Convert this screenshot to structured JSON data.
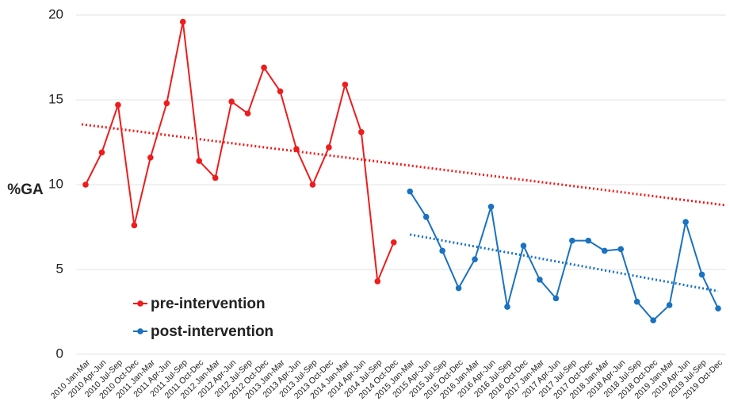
{
  "chart_data": {
    "type": "line",
    "y_label": "%GA",
    "categories": [
      "2010 Jan-Mar",
      "2010 Apr-Jun",
      "2010 Jul-Sep",
      "2010 Oct-Dec",
      "2011 Jan-Mar",
      "2011 Apr-Jun",
      "2011 Jul-Sep",
      "2011 Oct-Dec",
      "2012 Jan-Mar",
      "2012 Apr-Jun",
      "2012 Jul-Sep",
      "2012 Oct-Dec",
      "2013 Jan-Mar",
      "2013 Apr-Jun",
      "2013 Jul-Sep",
      "2013 Oct-Dec",
      "2014 Jan-Mar",
      "2014 Apr-Jun",
      "2014 Jul-Sep",
      "2014 Oct-Dec",
      "2015 Jan-Mar",
      "2015 Apr-Jun",
      "2015 Jul-Sep",
      "2015 Oct-Dec",
      "2016 Jan-Mar",
      "2016 Apr-Jun",
      "2016 Jul-Sep",
      "2016 Oct-Dec",
      "2017 Jan-Mar",
      "2017 Apr-Jun",
      "2017 Jul-Sep",
      "2017 Oct-Dec",
      "2018 Jan-Mar",
      "2018 Apr-Jun",
      "2018 Jul-Sep",
      "2018 Oct-Dec",
      "2019 Jan-Mar",
      "2019 Apr-Jun",
      "2019 Jul-Sep",
      "2019 Oct-Dec"
    ],
    "series": [
      {
        "name": "pre-intervention",
        "color": "#ee1c1c",
        "trendline": "full",
        "values": [
          10.0,
          11.9,
          14.7,
          7.6,
          11.6,
          14.8,
          19.6,
          11.4,
          10.4,
          14.9,
          14.2,
          16.9,
          15.5,
          12.1,
          10.0,
          12.2,
          15.9,
          13.1,
          4.3,
          6.6,
          null,
          null,
          null,
          null,
          null,
          null,
          null,
          null,
          null,
          null,
          null,
          null,
          null,
          null,
          null,
          null,
          null,
          null,
          null,
          null
        ]
      },
      {
        "name": "post-intervention",
        "color": "#1a72c0",
        "trendline": "own",
        "values": [
          null,
          null,
          null,
          null,
          null,
          null,
          null,
          null,
          null,
          null,
          null,
          null,
          null,
          null,
          null,
          null,
          null,
          null,
          null,
          null,
          9.6,
          8.1,
          6.1,
          3.9,
          5.6,
          8.7,
          2.8,
          6.4,
          4.4,
          3.3,
          6.7,
          6.7,
          6.1,
          6.2,
          3.1,
          2.0,
          2.9,
          7.8,
          4.7,
          2.7
        ]
      }
    ],
    "ylim": [
      0,
      20
    ],
    "yticks": [
      0,
      5,
      10,
      15,
      20
    ],
    "grid": true,
    "legend": "lower-left"
  }
}
